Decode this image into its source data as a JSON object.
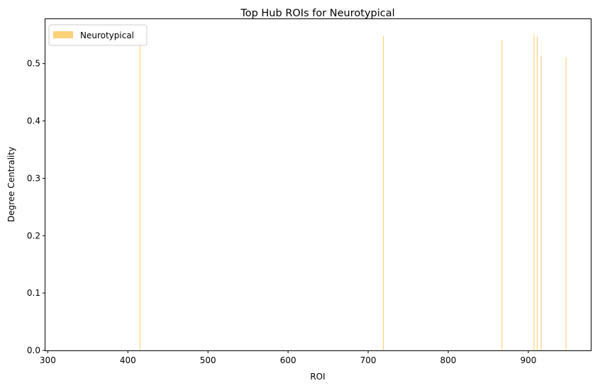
{
  "chart_data": {
    "type": "bar",
    "title": "Top Hub ROIs for Neurotypical",
    "xlabel": "ROI",
    "ylabel": "Degree Centrality",
    "xlim": [
      297,
      978
    ],
    "ylim": [
      0,
      0.5775
    ],
    "xticks": [
      300,
      400,
      500,
      600,
      700,
      800,
      900
    ],
    "yticks": [
      0.0,
      0.1,
      0.2,
      0.3,
      0.4,
      0.5
    ],
    "legend_position": "top-left",
    "grid": false,
    "series": [
      {
        "name": "Neurotypical",
        "color": "#FBC14D",
        "x": [
          415,
          719,
          867,
          907,
          911,
          916,
          947
        ],
        "values": [
          0.533,
          0.548,
          0.541,
          0.55,
          0.547,
          0.513,
          0.511
        ]
      }
    ]
  }
}
